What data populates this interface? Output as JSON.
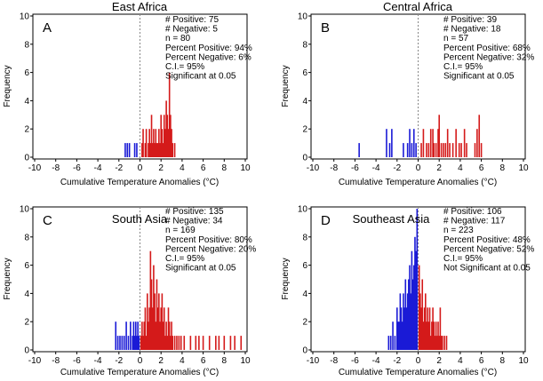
{
  "colors": {
    "positive": "#d41a1a",
    "negative": "#1a1ad6",
    "axis": "#000000",
    "zero_line": "#888888"
  },
  "chart_data": [
    {
      "type": "bar",
      "letter": "A",
      "title": "East Africa",
      "xlabel": "Cumulative Temperature Anomalies (°C)",
      "ylabel": "Frequency",
      "xlim": [
        -10,
        10
      ],
      "ylim": [
        0,
        10
      ],
      "xticks": [
        "-10",
        "-8",
        "-6",
        "-4",
        "-2",
        "0",
        "2",
        "4",
        "6",
        "8",
        "10"
      ],
      "yticks": [
        "0",
        "2",
        "4",
        "6",
        "8",
        "10"
      ],
      "stats": [
        "# Positive: 75",
        "# Negative: 5",
        "n = 80",
        "Percent Positive: 94%",
        "Percent Negative: 6%",
        "C.I.= 95%",
        "Significant at 0.05"
      ],
      "positive_bins": [
        [
          0.2,
          1
        ],
        [
          0.3,
          2
        ],
        [
          0.5,
          1
        ],
        [
          0.6,
          2
        ],
        [
          0.8,
          1
        ],
        [
          0.9,
          2
        ],
        [
          1.0,
          1
        ],
        [
          1.1,
          3
        ],
        [
          1.2,
          1
        ],
        [
          1.3,
          2
        ],
        [
          1.4,
          1
        ],
        [
          1.5,
          2
        ],
        [
          1.6,
          1
        ],
        [
          1.7,
          1
        ],
        [
          1.8,
          2
        ],
        [
          1.9,
          1
        ],
        [
          2.0,
          3
        ],
        [
          2.1,
          2
        ],
        [
          2.2,
          1
        ],
        [
          2.3,
          3
        ],
        [
          2.4,
          2
        ],
        [
          2.5,
          4
        ],
        [
          2.6,
          3
        ],
        [
          2.7,
          2
        ],
        [
          2.8,
          6
        ],
        [
          2.9,
          3
        ],
        [
          3.0,
          2
        ],
        [
          3.1,
          1
        ],
        [
          3.3,
          1
        ]
      ],
      "negative_bins": [
        [
          -1.4,
          1
        ],
        [
          -1.2,
          1
        ],
        [
          -1.0,
          1
        ],
        [
          -0.5,
          1
        ],
        [
          -0.3,
          1
        ]
      ]
    },
    {
      "type": "bar",
      "letter": "B",
      "title": "Central Africa",
      "xlabel": "Cumulative Temperature Anomalies (°C)",
      "ylabel": "Frequency",
      "xlim": [
        -10,
        10
      ],
      "ylim": [
        0,
        10
      ],
      "xticks": [
        "-10",
        "-8",
        "-6",
        "-4",
        "-2",
        "0",
        "2",
        "4",
        "6",
        "8",
        "10"
      ],
      "yticks": [
        "0",
        "2",
        "4",
        "6",
        "8",
        "10"
      ],
      "stats": [
        "# Positive: 39",
        "# Negative: 18",
        "n = 57",
        "Percent Positive: 68%",
        "Percent Negative: 32%",
        "C.I.= 95%",
        "Significant at 0.05"
      ],
      "positive_bins": [
        [
          0.3,
          1
        ],
        [
          0.5,
          2
        ],
        [
          0.8,
          1
        ],
        [
          1.0,
          1
        ],
        [
          1.2,
          2
        ],
        [
          1.4,
          2
        ],
        [
          1.5,
          1
        ],
        [
          1.7,
          1
        ],
        [
          1.9,
          2
        ],
        [
          2.0,
          3
        ],
        [
          2.2,
          1
        ],
        [
          2.4,
          1
        ],
        [
          2.6,
          1
        ],
        [
          2.8,
          2
        ],
        [
          3.0,
          1
        ],
        [
          3.3,
          1
        ],
        [
          3.6,
          2
        ],
        [
          3.9,
          1
        ],
        [
          4.1,
          1
        ],
        [
          4.4,
          2
        ],
        [
          4.6,
          1
        ],
        [
          5.4,
          1
        ],
        [
          5.6,
          2
        ],
        [
          5.8,
          3
        ],
        [
          6.0,
          1
        ]
      ],
      "negative_bins": [
        [
          -5.6,
          1
        ],
        [
          -3.0,
          2
        ],
        [
          -2.7,
          1
        ],
        [
          -2.5,
          2
        ],
        [
          -1.4,
          1
        ],
        [
          -1.0,
          1
        ],
        [
          -0.8,
          2
        ],
        [
          -0.6,
          1
        ],
        [
          -0.4,
          2
        ],
        [
          -0.2,
          1
        ]
      ]
    },
    {
      "type": "bar",
      "letter": "C",
      "title": "South Asia",
      "xlabel": "Cumulative Temperature Anomalies (°C)",
      "ylabel": "Frequency",
      "xlim": [
        -10,
        10
      ],
      "ylim": [
        0,
        10
      ],
      "xticks": [
        "-10",
        "-8",
        "-6",
        "-4",
        "-2",
        "0",
        "2",
        "4",
        "6",
        "8",
        "10"
      ],
      "yticks": [
        "0",
        "2",
        "4",
        "6",
        "8",
        "10"
      ],
      "stats": [
        "# Positive: 135",
        "# Negative: 34",
        "n = 169",
        "Percent Positive: 80%",
        "Percent Negative: 20%",
        "C.I.= 95%",
        "Significant at 0.05"
      ],
      "positive_bins": [
        [
          0.1,
          1
        ],
        [
          0.2,
          2
        ],
        [
          0.3,
          1
        ],
        [
          0.4,
          2
        ],
        [
          0.5,
          3
        ],
        [
          0.6,
          1
        ],
        [
          0.7,
          4
        ],
        [
          0.8,
          2
        ],
        [
          0.9,
          3
        ],
        [
          1.0,
          7
        ],
        [
          1.1,
          5
        ],
        [
          1.2,
          3
        ],
        [
          1.3,
          6
        ],
        [
          1.4,
          4
        ],
        [
          1.5,
          2
        ],
        [
          1.6,
          5
        ],
        [
          1.7,
          3
        ],
        [
          1.8,
          4
        ],
        [
          1.9,
          2
        ],
        [
          2.0,
          3
        ],
        [
          2.1,
          4
        ],
        [
          2.2,
          2
        ],
        [
          2.3,
          3
        ],
        [
          2.4,
          1
        ],
        [
          2.5,
          2
        ],
        [
          2.6,
          1
        ],
        [
          2.7,
          3
        ],
        [
          2.8,
          2
        ],
        [
          2.9,
          1
        ],
        [
          3.0,
          2
        ],
        [
          3.1,
          1
        ],
        [
          3.3,
          1
        ],
        [
          3.5,
          1
        ],
        [
          3.7,
          1
        ],
        [
          3.9,
          1
        ],
        [
          4.2,
          1
        ],
        [
          4.8,
          1
        ],
        [
          5.3,
          1
        ],
        [
          5.6,
          1
        ],
        [
          6.0,
          1
        ],
        [
          6.6,
          1
        ],
        [
          7.2,
          1
        ],
        [
          7.5,
          1
        ],
        [
          8.0,
          1
        ],
        [
          8.6,
          1
        ],
        [
          9.0,
          1
        ],
        [
          9.6,
          1
        ]
      ],
      "negative_bins": [
        [
          -2.3,
          2
        ],
        [
          -2.1,
          1
        ],
        [
          -1.9,
          1
        ],
        [
          -1.7,
          1
        ],
        [
          -1.5,
          1
        ],
        [
          -1.3,
          2
        ],
        [
          -1.1,
          1
        ],
        [
          -0.9,
          2
        ],
        [
          -0.7,
          1
        ],
        [
          -0.6,
          2
        ],
        [
          -0.5,
          1
        ],
        [
          -0.4,
          2
        ],
        [
          -0.3,
          1
        ],
        [
          -0.2,
          2
        ],
        [
          -0.1,
          1
        ]
      ]
    },
    {
      "type": "bar",
      "letter": "D",
      "title": "Southeast Asia",
      "xlabel": "Cumulative Temperature Anomalies (°C)",
      "ylabel": "Frequency",
      "xlim": [
        -10,
        10
      ],
      "ylim": [
        0,
        10
      ],
      "xticks": [
        "-10",
        "-8",
        "-6",
        "-4",
        "-2",
        "0",
        "2",
        "4",
        "6",
        "8",
        "10"
      ],
      "yticks": [
        "0",
        "2",
        "4",
        "6",
        "8",
        "10"
      ],
      "stats": [
        "# Positive: 106",
        "# Negative: 117",
        "n = 223",
        "Percent Positive: 48%",
        "Percent Negative: 52%",
        "C.I.= 95%",
        "Not Significant at 0.05"
      ],
      "positive_bins": [
        [
          0.1,
          6
        ],
        [
          0.2,
          4
        ],
        [
          0.3,
          3
        ],
        [
          0.4,
          5
        ],
        [
          0.5,
          2
        ],
        [
          0.6,
          3
        ],
        [
          0.7,
          4
        ],
        [
          0.8,
          2
        ],
        [
          0.9,
          3
        ],
        [
          1.0,
          2
        ],
        [
          1.1,
          3
        ],
        [
          1.2,
          1
        ],
        [
          1.3,
          2
        ],
        [
          1.4,
          3
        ],
        [
          1.5,
          2
        ],
        [
          1.6,
          1
        ],
        [
          1.7,
          2
        ],
        [
          1.8,
          1
        ],
        [
          1.9,
          2
        ],
        [
          2.0,
          1
        ],
        [
          2.1,
          3
        ],
        [
          2.2,
          1
        ],
        [
          2.3,
          1
        ],
        [
          2.5,
          1
        ],
        [
          2.7,
          1
        ]
      ],
      "negative_bins": [
        [
          -2.8,
          1
        ],
        [
          -2.6,
          1
        ],
        [
          -2.4,
          2
        ],
        [
          -2.2,
          1
        ],
        [
          -2.0,
          3
        ],
        [
          -1.9,
          2
        ],
        [
          -1.8,
          2
        ],
        [
          -1.7,
          4
        ],
        [
          -1.6,
          3
        ],
        [
          -1.5,
          2
        ],
        [
          -1.4,
          4
        ],
        [
          -1.3,
          3
        ],
        [
          -1.2,
          5
        ],
        [
          -1.1,
          3
        ],
        [
          -1.0,
          4
        ],
        [
          -0.9,
          5
        ],
        [
          -0.8,
          6
        ],
        [
          -0.7,
          4
        ],
        [
          -0.6,
          7
        ],
        [
          -0.5,
          5
        ],
        [
          -0.4,
          6
        ],
        [
          -0.3,
          8
        ],
        [
          -0.2,
          7
        ],
        [
          -0.1,
          10
        ]
      ]
    }
  ]
}
